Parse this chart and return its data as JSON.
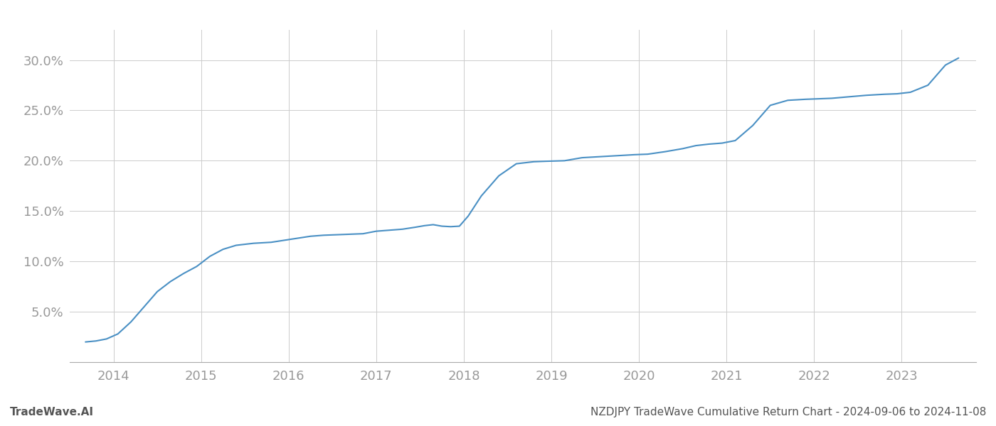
{
  "title": "NZDJPY TradeWave Cumulative Return Chart - 2024-09-06 to 2024-11-08",
  "watermark": "TradeWave.AI",
  "line_color": "#4a90c4",
  "background_color": "#ffffff",
  "grid_color": "#cccccc",
  "x_values": [
    2013.68,
    2013.8,
    2013.92,
    2014.05,
    2014.2,
    2014.35,
    2014.5,
    2014.65,
    2014.8,
    2014.95,
    2015.1,
    2015.25,
    2015.4,
    2015.6,
    2015.8,
    2015.95,
    2016.1,
    2016.25,
    2016.4,
    2016.55,
    2016.7,
    2016.85,
    2017.0,
    2017.15,
    2017.3,
    2017.45,
    2017.55,
    2017.65,
    2017.75,
    2017.85,
    2017.95,
    2018.05,
    2018.2,
    2018.4,
    2018.6,
    2018.8,
    2018.95,
    2019.15,
    2019.35,
    2019.55,
    2019.75,
    2019.95,
    2020.1,
    2020.3,
    2020.5,
    2020.65,
    2020.8,
    2020.95,
    2021.1,
    2021.3,
    2021.5,
    2021.7,
    2021.9,
    2022.05,
    2022.2,
    2022.4,
    2022.6,
    2022.8,
    2022.95,
    2023.1,
    2023.3,
    2023.5,
    2023.65
  ],
  "y_values": [
    2.0,
    2.1,
    2.3,
    2.8,
    4.0,
    5.5,
    7.0,
    8.0,
    8.8,
    9.5,
    10.5,
    11.2,
    11.6,
    11.8,
    11.9,
    12.1,
    12.3,
    12.5,
    12.6,
    12.65,
    12.7,
    12.75,
    13.0,
    13.1,
    13.2,
    13.4,
    13.55,
    13.65,
    13.5,
    13.45,
    13.5,
    14.5,
    16.5,
    18.5,
    19.7,
    19.9,
    19.95,
    20.0,
    20.3,
    20.4,
    20.5,
    20.6,
    20.65,
    20.9,
    21.2,
    21.5,
    21.65,
    21.75,
    22.0,
    23.5,
    25.5,
    26.0,
    26.1,
    26.15,
    26.2,
    26.35,
    26.5,
    26.6,
    26.65,
    26.8,
    27.5,
    29.5,
    30.2
  ],
  "xlim": [
    2013.5,
    2023.85
  ],
  "ylim": [
    0,
    33
  ],
  "yticks": [
    5.0,
    10.0,
    15.0,
    20.0,
    25.0,
    30.0
  ],
  "ytick_labels": [
    "5.0%",
    "10.0%",
    "15.0%",
    "20.0%",
    "25.0%",
    "30.0%"
  ],
  "xticks": [
    2014,
    2015,
    2016,
    2017,
    2018,
    2019,
    2020,
    2021,
    2022,
    2023
  ],
  "xtick_labels": [
    "2014",
    "2015",
    "2016",
    "2017",
    "2018",
    "2019",
    "2020",
    "2021",
    "2022",
    "2023"
  ],
  "line_width": 1.5,
  "tick_color": "#999999",
  "tick_fontsize": 13,
  "footer_fontsize": 11,
  "footer_color": "#555555"
}
